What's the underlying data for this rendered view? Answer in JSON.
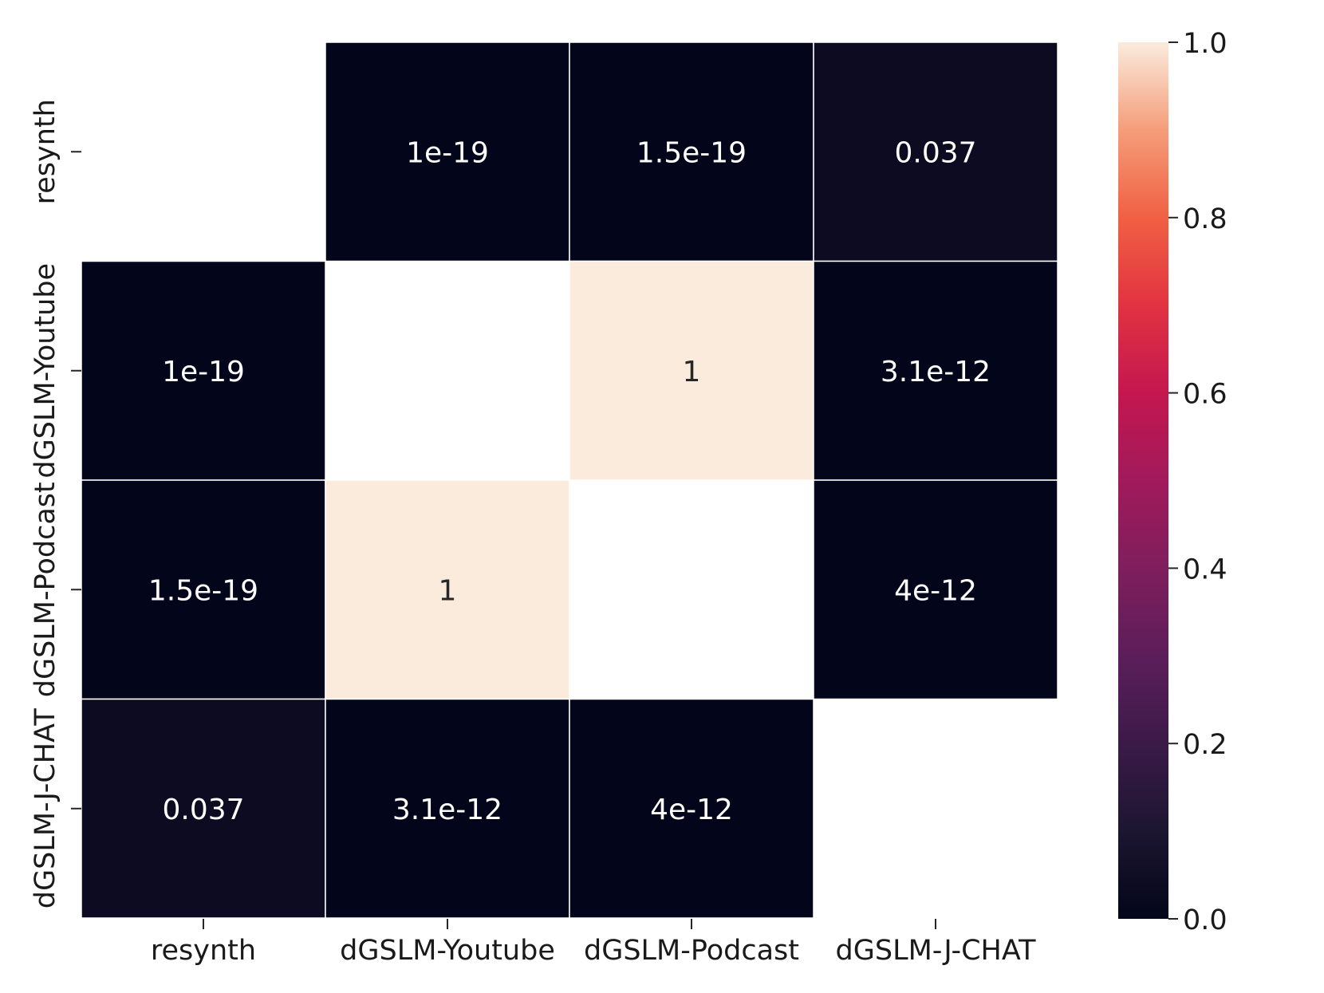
{
  "chart_data": {
    "type": "heatmap",
    "rows": [
      "resynth",
      "dGSLM-Youtube",
      "dGSLM-Podcast",
      "dGSLM-J-CHAT"
    ],
    "columns": [
      "resynth",
      "dGSLM-Youtube",
      "dGSLM-Podcast",
      "dGSLM-J-CHAT"
    ],
    "values": [
      [
        null,
        1e-19,
        1.5e-19,
        0.037
      ],
      [
        1e-19,
        null,
        1,
        3.1e-12
      ],
      [
        1.5e-19,
        1,
        null,
        4e-12
      ],
      [
        0.037,
        3.1e-12,
        4e-12,
        null
      ]
    ],
    "annotations": [
      [
        null,
        "1e-19",
        "1.5e-19",
        "0.037"
      ],
      [
        "1e-19",
        null,
        "1",
        "3.1e-12"
      ],
      [
        "1.5e-19",
        "1",
        null,
        "4e-12"
      ],
      [
        "0.037",
        "3.1e-12",
        "4e-12",
        null
      ]
    ],
    "colorbar": {
      "colormap": "rocket",
      "range": [
        0.0,
        1.0
      ],
      "ticks": [
        "0.0",
        "0.2",
        "0.4",
        "0.6",
        "0.8",
        "1.0"
      ]
    },
    "title": "",
    "xlabel": "",
    "ylabel": "",
    "legend": "colorbar-right",
    "grid": false
  }
}
